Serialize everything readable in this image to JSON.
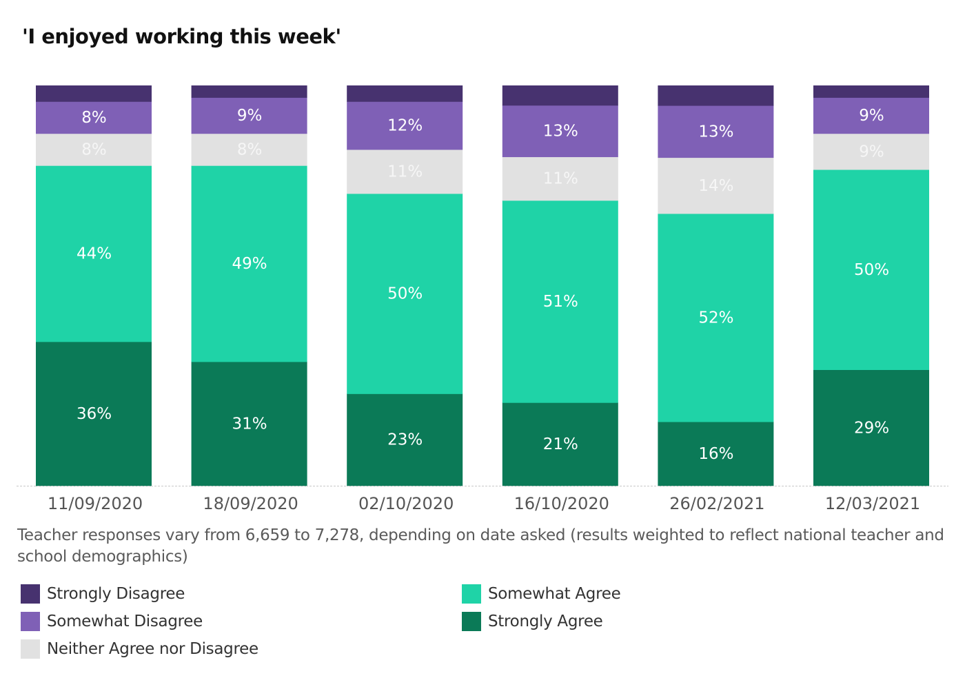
{
  "chart_data": {
    "type": "bar",
    "stacked": true,
    "orientation": "vertical",
    "title": "'I enjoyed working this week'",
    "xlabel": "",
    "ylabel": "",
    "ylim": [
      0,
      100
    ],
    "grid": false,
    "categories": [
      "11/09/2020",
      "18/09/2020",
      "02/10/2020",
      "16/10/2020",
      "26/02/2021",
      "12/03/2021"
    ],
    "series": [
      {
        "name": "Strongly Agree",
        "color": "#0b7a57",
        "values": [
          36,
          31,
          23,
          21,
          16,
          29
        ],
        "labels": [
          "36%",
          "31%",
          "23%",
          "21%",
          "16%",
          "29%"
        ]
      },
      {
        "name": "Somewhat Agree",
        "color": "#1fd3a7",
        "values": [
          44,
          49,
          50,
          51,
          52,
          50
        ],
        "labels": [
          "44%",
          "49%",
          "50%",
          "51%",
          "52%",
          "50%"
        ]
      },
      {
        "name": "Neither Agree nor Disagree",
        "color": "#e1e1e1",
        "values": [
          8,
          8,
          11,
          11,
          14,
          9
        ],
        "labels": [
          "8%",
          "8%",
          "11%",
          "11%",
          "14%",
          "9%"
        ]
      },
      {
        "name": "Somewhat Disagree",
        "color": "#7f60b6",
        "values": [
          8,
          9,
          12,
          13,
          13,
          9
        ],
        "labels": [
          "8%",
          "9%",
          "12%",
          "13%",
          "13%",
          "9%"
        ]
      },
      {
        "name": "Strongly Disagree",
        "color": "#47326f",
        "values": [
          4,
          3,
          4,
          5,
          5,
          3
        ],
        "labels": [
          "",
          "",
          "",
          "",
          "",
          ""
        ]
      }
    ],
    "legend": {
      "placement": "bottom",
      "entries": [
        {
          "label": "Strongly Disagree",
          "color": "#47326f"
        },
        {
          "label": "Somewhat Disagree",
          "color": "#7f60b6"
        },
        {
          "label": "Neither Agree nor Disagree",
          "color": "#e1e1e1"
        },
        {
          "label": "Somewhat Agree",
          "color": "#1fd3a7"
        },
        {
          "label": "Strongly Agree",
          "color": "#0b7a57"
        }
      ]
    },
    "annotation": "Teacher responses vary from 6,659 to 7,278, depending on date asked (results weighted to reflect national teacher and school demographics)"
  }
}
